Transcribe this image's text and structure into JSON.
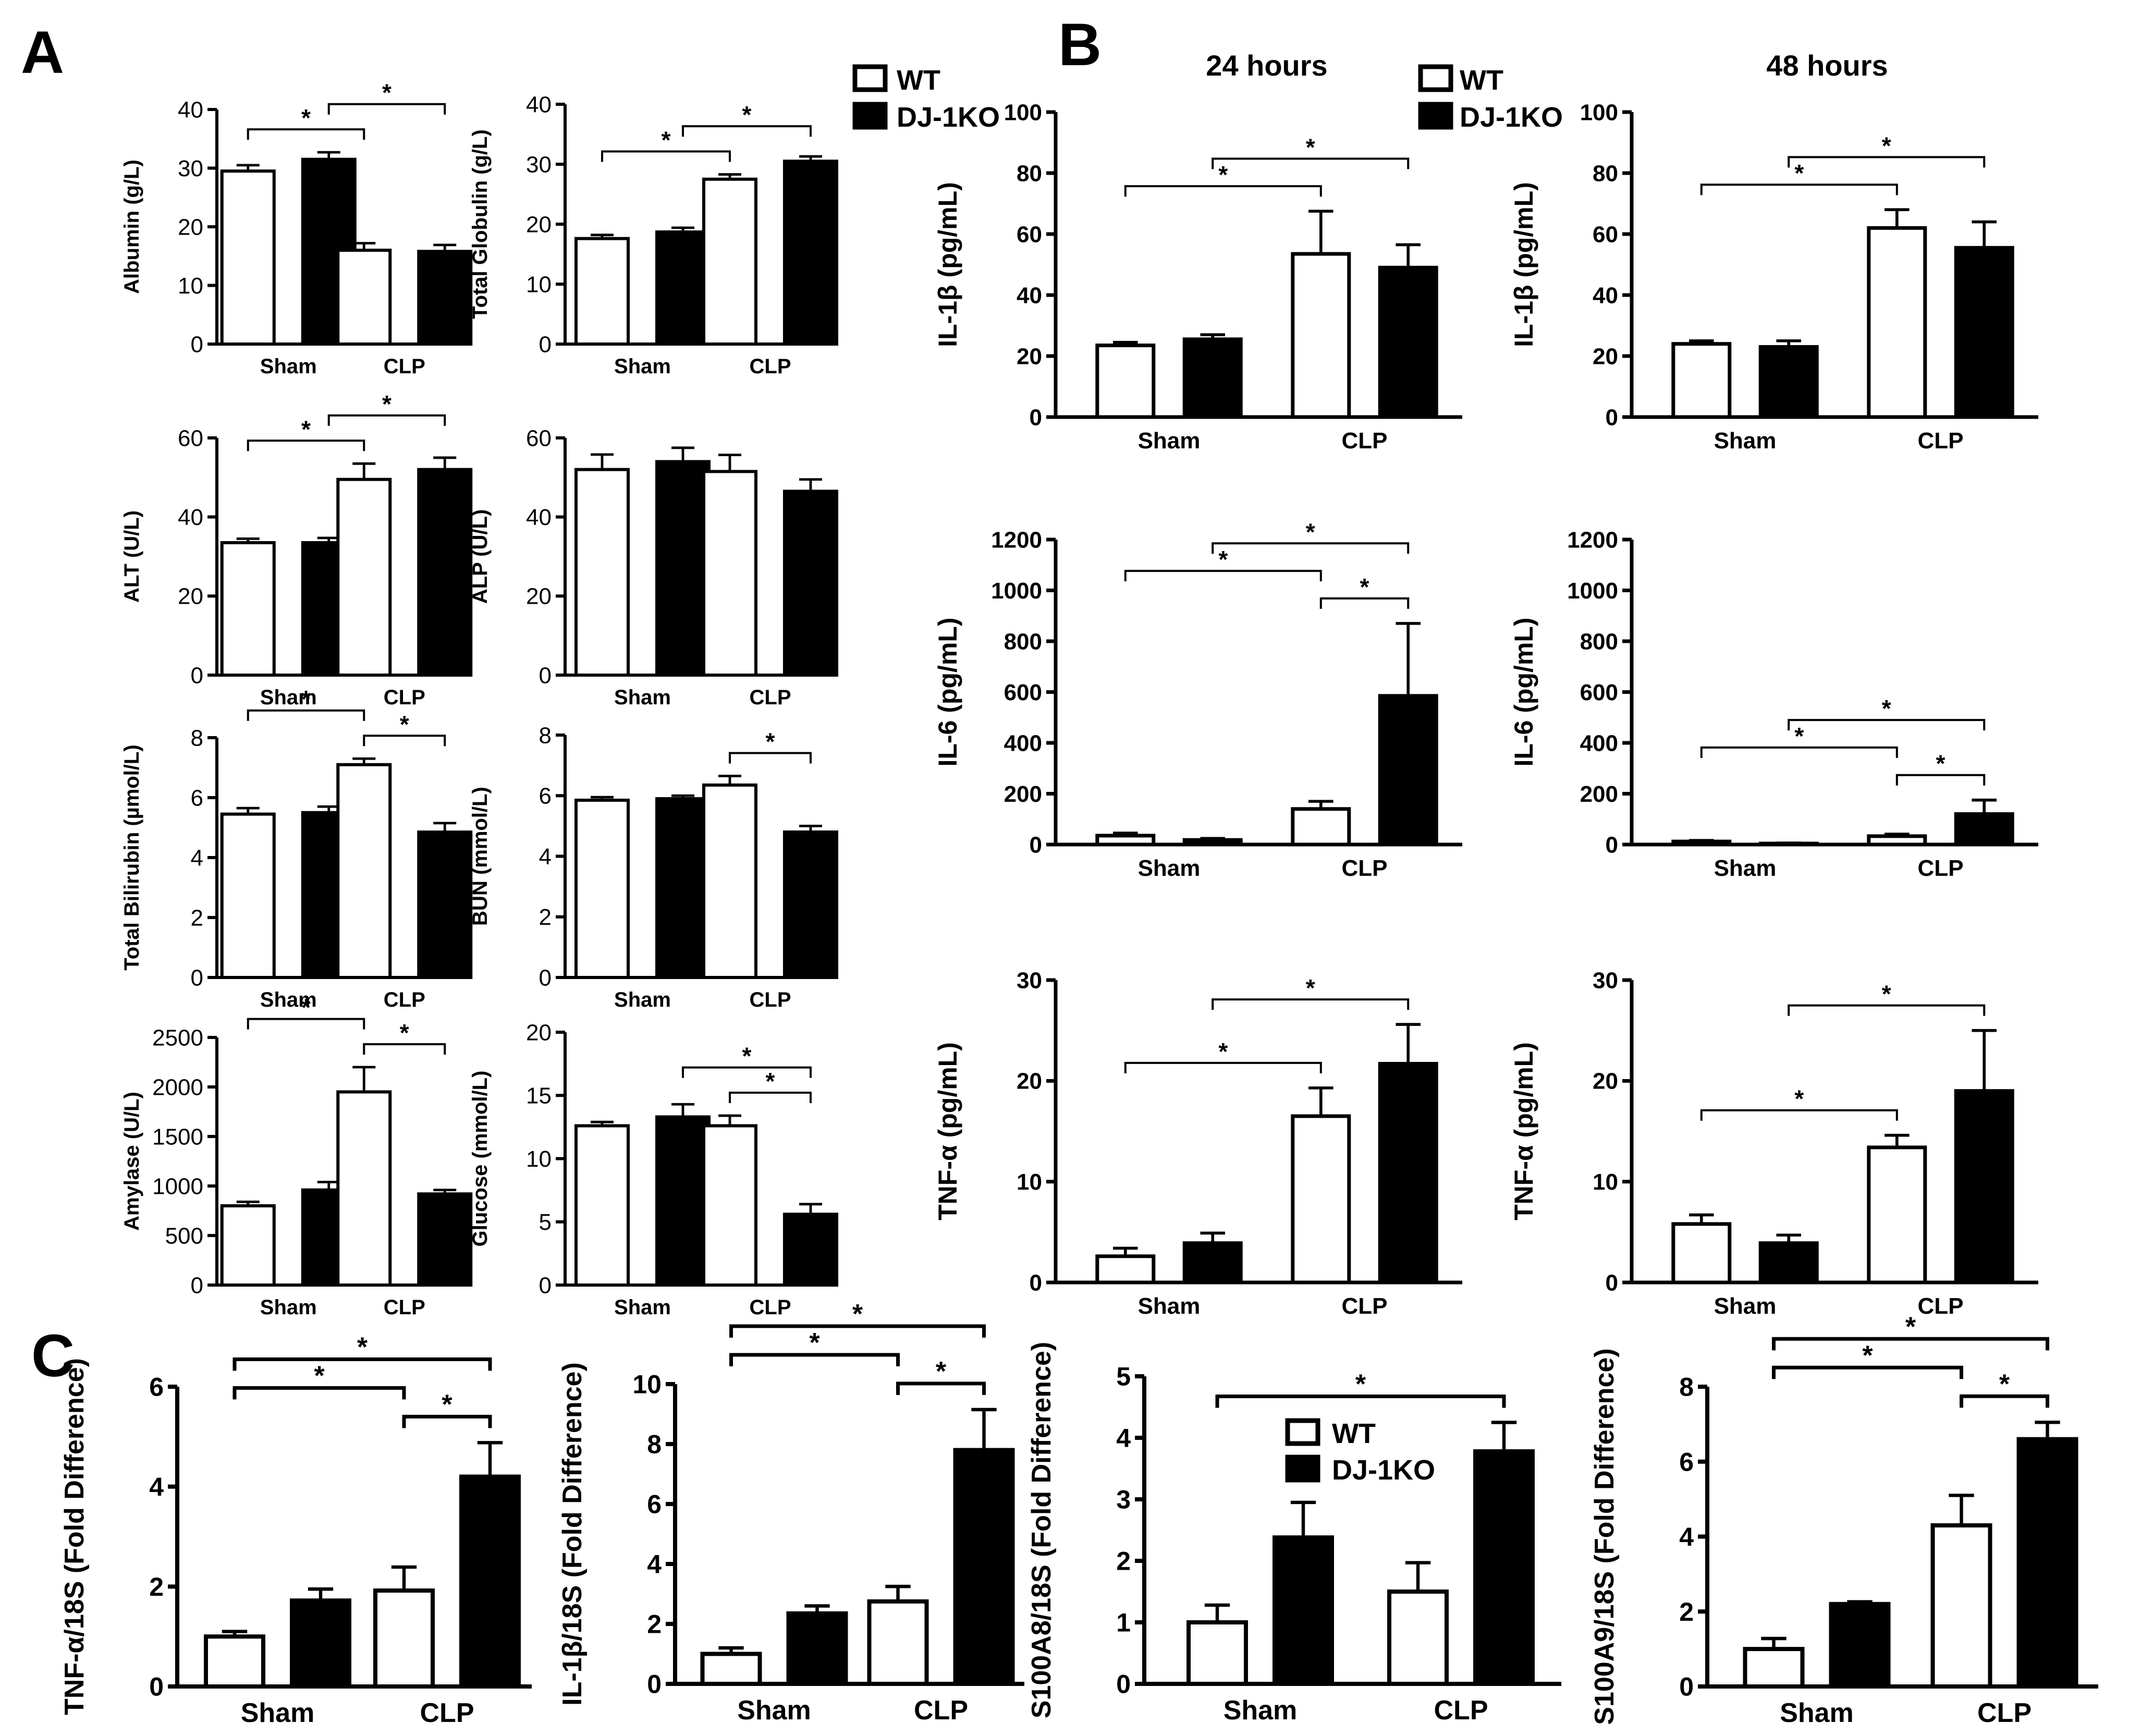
{
  "panel_labels": [
    "A",
    "B",
    "C"
  ],
  "legend": {
    "wt": "WT",
    "ko": "DJ-1KO",
    "wt_color": "#ffffff",
    "ko_color": "#000000"
  },
  "timepoints": {
    "h24": "24 hours",
    "h48": "48 hours"
  },
  "chart_data": [
    {
      "id": "A_albumin",
      "panel": "A",
      "type": "bar",
      "categories": [
        "Sham",
        "CLP"
      ],
      "ylabel": "Albumin (g/L)",
      "ylim": [
        0,
        40
      ],
      "yticks": [
        0,
        10,
        20,
        30,
        40
      ],
      "series": [
        {
          "name": "WT",
          "values": [
            29.5,
            16
          ],
          "errors": [
            1,
            1.2
          ]
        },
        {
          "name": "DJ-1KO",
          "values": [
            31.5,
            15.8
          ],
          "errors": [
            1.2,
            1.1
          ]
        }
      ],
      "significance": [
        {
          "from": 0,
          "to": 2,
          "label": "*"
        },
        {
          "from": 1,
          "to": 3,
          "label": "*"
        }
      ]
    },
    {
      "id": "A_globulin",
      "panel": "A",
      "type": "bar",
      "categories": [
        "Sham",
        "CLP"
      ],
      "ylabel": "Total Globulin (g/L)",
      "ylim": [
        0,
        40
      ],
      "yticks": [
        0,
        10,
        20,
        30,
        40
      ],
      "series": [
        {
          "name": "WT",
          "values": [
            17.6,
            27.5
          ],
          "errors": [
            0.6,
            0.8
          ]
        },
        {
          "name": "DJ-1KO",
          "values": [
            18.7,
            30.5
          ],
          "errors": [
            0.7,
            0.8
          ]
        }
      ],
      "significance": [
        {
          "from": 0,
          "to": 2,
          "label": "*"
        },
        {
          "from": 1,
          "to": 3,
          "label": "*"
        }
      ]
    },
    {
      "id": "A_alt",
      "panel": "A",
      "type": "bar",
      "categories": [
        "Sham",
        "CLP"
      ],
      "ylabel": "ALT (U/L)",
      "ylim": [
        0,
        60
      ],
      "yticks": [
        0,
        20,
        40,
        60
      ],
      "series": [
        {
          "name": "WT",
          "values": [
            33.5,
            49.5
          ],
          "errors": [
            1,
            4
          ]
        },
        {
          "name": "DJ-1KO",
          "values": [
            33.5,
            52
          ],
          "errors": [
            1.2,
            3
          ]
        }
      ],
      "significance": [
        {
          "from": 0,
          "to": 2,
          "label": "*"
        },
        {
          "from": 1,
          "to": 3,
          "label": "*"
        }
      ]
    },
    {
      "id": "A_alp",
      "panel": "A",
      "type": "bar",
      "categories": [
        "Sham",
        "CLP"
      ],
      "ylabel": "ALP (U/L)",
      "ylim": [
        0,
        60
      ],
      "yticks": [
        0,
        20,
        40,
        60
      ],
      "series": [
        {
          "name": "WT",
          "values": [
            52,
            51.5
          ],
          "errors": [
            3.8,
            4.2
          ]
        },
        {
          "name": "DJ-1KO",
          "values": [
            54,
            46.5
          ],
          "errors": [
            3.5,
            3
          ]
        }
      ],
      "significance": []
    },
    {
      "id": "A_bilirubin",
      "panel": "A",
      "type": "bar",
      "categories": [
        "Sham",
        "CLP"
      ],
      "ylabel": "Total Bilirubin (µmol/L)",
      "ylim": [
        0,
        8
      ],
      "yticks": [
        0,
        2,
        4,
        6,
        8
      ],
      "series": [
        {
          "name": "WT",
          "values": [
            5.45,
            7.1
          ],
          "errors": [
            0.2,
            0.2
          ]
        },
        {
          "name": "DJ-1KO",
          "values": [
            5.5,
            4.85
          ],
          "errors": [
            0.2,
            0.3
          ]
        }
      ],
      "significance": [
        {
          "from": 0,
          "to": 2,
          "label": "*"
        },
        {
          "from": 2,
          "to": 3,
          "label": "*"
        }
      ]
    },
    {
      "id": "A_bun",
      "panel": "A",
      "type": "bar",
      "categories": [
        "Sham",
        "CLP"
      ],
      "ylabel": "BUN (mmol/L)",
      "ylim": [
        0,
        8
      ],
      "yticks": [
        0,
        2,
        4,
        6,
        8
      ],
      "series": [
        {
          "name": "WT",
          "values": [
            5.85,
            6.35
          ],
          "errors": [
            0.1,
            0.3
          ]
        },
        {
          "name": "DJ-1KO",
          "values": [
            5.9,
            4.8
          ],
          "errors": [
            0.1,
            0.2
          ]
        }
      ],
      "significance": [
        {
          "from": 2,
          "to": 3,
          "label": "*"
        }
      ]
    },
    {
      "id": "A_amylase",
      "panel": "A",
      "type": "bar",
      "categories": [
        "Sham",
        "CLP"
      ],
      "ylabel": "Amylase (U/L)",
      "ylim": [
        0,
        2500
      ],
      "yticks": [
        0,
        500,
        1000,
        1500,
        2000,
        2500
      ],
      "series": [
        {
          "name": "WT",
          "values": [
            800,
            1950
          ],
          "errors": [
            40,
            250
          ]
        },
        {
          "name": "DJ-1KO",
          "values": [
            960,
            920
          ],
          "errors": [
            80,
            40
          ]
        }
      ],
      "significance": [
        {
          "from": 0,
          "to": 2,
          "label": "*"
        },
        {
          "from": 2,
          "to": 3,
          "label": "*"
        }
      ]
    },
    {
      "id": "A_glucose",
      "panel": "A",
      "type": "bar",
      "categories": [
        "Sham",
        "CLP"
      ],
      "ylabel": "Glucose (mmol/L)",
      "ylim": [
        0,
        20
      ],
      "yticks": [
        0,
        5,
        10,
        15,
        20
      ],
      "series": [
        {
          "name": "WT",
          "values": [
            12.6,
            12.6
          ],
          "errors": [
            0.3,
            0.8
          ]
        },
        {
          "name": "DJ-1KO",
          "values": [
            13.3,
            5.6
          ],
          "errors": [
            1,
            0.8
          ]
        }
      ],
      "significance": [
        {
          "from": 1,
          "to": 3,
          "label": "*"
        },
        {
          "from": 2,
          "to": 3,
          "label": "*"
        }
      ]
    },
    {
      "id": "B_il1b_24",
      "panel": "B",
      "type": "bar",
      "categories": [
        "Sham",
        "CLP"
      ],
      "ylabel": "IL-1β (pg/mL)",
      "ylim": [
        0,
        100
      ],
      "yticks": [
        0,
        20,
        40,
        60,
        80,
        100
      ],
      "series": [
        {
          "name": "WT",
          "values": [
            23.5,
            53.5
          ],
          "errors": [
            1,
            14
          ]
        },
        {
          "name": "DJ-1KO",
          "values": [
            25.5,
            49
          ],
          "errors": [
            1.5,
            7.5
          ]
        }
      ],
      "significance": [
        {
          "from": 0,
          "to": 2,
          "label": "*"
        },
        {
          "from": 1,
          "to": 3,
          "label": "*"
        }
      ]
    },
    {
      "id": "B_il1b_48",
      "panel": "B",
      "type": "bar",
      "categories": [
        "Sham",
        "CLP"
      ],
      "ylabel": "IL-1β (pg/mL)",
      "ylim": [
        0,
        100
      ],
      "yticks": [
        0,
        20,
        40,
        60,
        80,
        100
      ],
      "series": [
        {
          "name": "WT",
          "values": [
            24,
            62
          ],
          "errors": [
            1,
            6
          ]
        },
        {
          "name": "DJ-1KO",
          "values": [
            23,
            55.5
          ],
          "errors": [
            2,
            8.5
          ]
        }
      ],
      "significance": [
        {
          "from": 0,
          "to": 2,
          "label": "*"
        },
        {
          "from": 1,
          "to": 3,
          "label": "*"
        }
      ]
    },
    {
      "id": "B_il6_24",
      "panel": "B",
      "type": "bar",
      "categories": [
        "Sham",
        "CLP"
      ],
      "ylabel": "IL-6 (pg/mL)",
      "ylim": [
        0,
        1200
      ],
      "yticks": [
        0,
        200,
        400,
        600,
        800,
        1000,
        1200
      ],
      "series": [
        {
          "name": "WT",
          "values": [
            35,
            140
          ],
          "errors": [
            10,
            30
          ]
        },
        {
          "name": "DJ-1KO",
          "values": [
            18,
            585
          ],
          "errors": [
            6,
            285
          ]
        }
      ],
      "significance": [
        {
          "from": 0,
          "to": 2,
          "label": "*"
        },
        {
          "from": 1,
          "to": 3,
          "label": "*"
        },
        {
          "from": 2,
          "to": 3,
          "label": "*"
        }
      ]
    },
    {
      "id": "B_il6_48",
      "panel": "B",
      "type": "bar",
      "categories": [
        "Sham",
        "CLP"
      ],
      "ylabel": "IL-6 (pg/mL)",
      "ylim": [
        0,
        1200
      ],
      "yticks": [
        0,
        200,
        400,
        600,
        800,
        1000,
        1200
      ],
      "series": [
        {
          "name": "WT",
          "values": [
            12,
            33
          ],
          "errors": [
            4,
            8
          ]
        },
        {
          "name": "DJ-1KO",
          "values": [
            4,
            120
          ],
          "errors": [
            2,
            55
          ]
        }
      ],
      "significance": [
        {
          "from": 0,
          "to": 2,
          "label": "*"
        },
        {
          "from": 1,
          "to": 3,
          "label": "*"
        },
        {
          "from": 2,
          "to": 3,
          "label": "*"
        }
      ]
    },
    {
      "id": "B_tnf_24",
      "panel": "B",
      "type": "bar",
      "categories": [
        "Sham",
        "CLP"
      ],
      "ylabel": "TNF-α (pg/mL)",
      "ylim": [
        0,
        30
      ],
      "yticks": [
        0,
        10,
        20,
        30
      ],
      "series": [
        {
          "name": "WT",
          "values": [
            2.6,
            16.5
          ],
          "errors": [
            0.8,
            2.8
          ]
        },
        {
          "name": "DJ-1KO",
          "values": [
            3.9,
            21.7
          ],
          "errors": [
            1,
            3.9
          ]
        }
      ],
      "significance": [
        {
          "from": 0,
          "to": 2,
          "label": "*"
        },
        {
          "from": 1,
          "to": 3,
          "label": "*"
        }
      ]
    },
    {
      "id": "B_tnf_48",
      "panel": "B",
      "type": "bar",
      "categories": [
        "Sham",
        "CLP"
      ],
      "ylabel": "TNF-α (pg/mL)",
      "ylim": [
        0,
        30
      ],
      "yticks": [
        0,
        10,
        20,
        30
      ],
      "series": [
        {
          "name": "WT",
          "values": [
            5.8,
            13.4
          ],
          "errors": [
            0.9,
            1.2
          ]
        },
        {
          "name": "DJ-1KO",
          "values": [
            3.9,
            19
          ],
          "errors": [
            0.8,
            6
          ]
        }
      ],
      "significance": [
        {
          "from": 0,
          "to": 2,
          "label": "*"
        },
        {
          "from": 1,
          "to": 3,
          "label": "*"
        }
      ]
    },
    {
      "id": "C_tnf",
      "panel": "C",
      "type": "bar",
      "categories": [
        "Sham",
        "CLP"
      ],
      "ylabel": "TNF-α/18S (Fold Difference)",
      "ylim": [
        0,
        6
      ],
      "yticks": [
        0,
        2,
        4,
        6
      ],
      "series": [
        {
          "name": "WT",
          "values": [
            1,
            1.92
          ],
          "errors": [
            0.1,
            0.47
          ]
        },
        {
          "name": "DJ-1KO",
          "values": [
            1.72,
            4.2
          ],
          "errors": [
            0.23,
            0.68
          ]
        }
      ],
      "significance": [
        {
          "from": 0,
          "to": 2,
          "label": "*"
        },
        {
          "from": 0,
          "to": 3,
          "label": "*"
        },
        {
          "from": 2,
          "to": 3,
          "label": "*"
        }
      ]
    },
    {
      "id": "C_il1b",
      "panel": "C",
      "type": "bar",
      "categories": [
        "Sham",
        "CLP"
      ],
      "ylabel": "IL-1β/18S (Fold Difference)",
      "ylim": [
        0,
        10
      ],
      "yticks": [
        0,
        2,
        4,
        6,
        8,
        10
      ],
      "series": [
        {
          "name": "WT",
          "values": [
            1,
            2.75
          ],
          "errors": [
            0.2,
            0.5
          ]
        },
        {
          "name": "DJ-1KO",
          "values": [
            2.35,
            7.8
          ],
          "errors": [
            0.25,
            1.35
          ]
        }
      ],
      "significance": [
        {
          "from": 0,
          "to": 2,
          "label": "*"
        },
        {
          "from": 0,
          "to": 3,
          "label": "*"
        },
        {
          "from": 2,
          "to": 3,
          "label": "*"
        }
      ]
    },
    {
      "id": "C_s100a8",
      "panel": "C",
      "type": "bar",
      "categories": [
        "Sham",
        "CLP"
      ],
      "ylabel": "S100A8/18S (Fold Difference)",
      "ylim": [
        0,
        5
      ],
      "yticks": [
        0,
        1,
        2,
        3,
        4,
        5
      ],
      "series": [
        {
          "name": "WT",
          "values": [
            1,
            1.5
          ],
          "errors": [
            0.28,
            0.47
          ]
        },
        {
          "name": "DJ-1KO",
          "values": [
            2.38,
            3.78
          ],
          "errors": [
            0.57,
            0.47
          ]
        }
      ],
      "significance": [
        {
          "from": 0,
          "to": 3,
          "label": "*"
        }
      ]
    },
    {
      "id": "C_s100a9",
      "panel": "C",
      "type": "bar",
      "categories": [
        "Sham",
        "CLP"
      ],
      "ylabel": "S100A9/18S (Fold Difference)",
      "ylim": [
        0,
        8
      ],
      "yticks": [
        0,
        2,
        4,
        6,
        8
      ],
      "series": [
        {
          "name": "WT",
          "values": [
            1,
            4.3
          ],
          "errors": [
            0.28,
            0.8
          ]
        },
        {
          "name": "DJ-1KO",
          "values": [
            2.2,
            6.6
          ],
          "errors": [
            0.06,
            0.45
          ]
        }
      ],
      "significance": [
        {
          "from": 0,
          "to": 2,
          "label": "*"
        },
        {
          "from": 0,
          "to": 3,
          "label": "*"
        },
        {
          "from": 2,
          "to": 3,
          "label": "*"
        }
      ]
    }
  ]
}
